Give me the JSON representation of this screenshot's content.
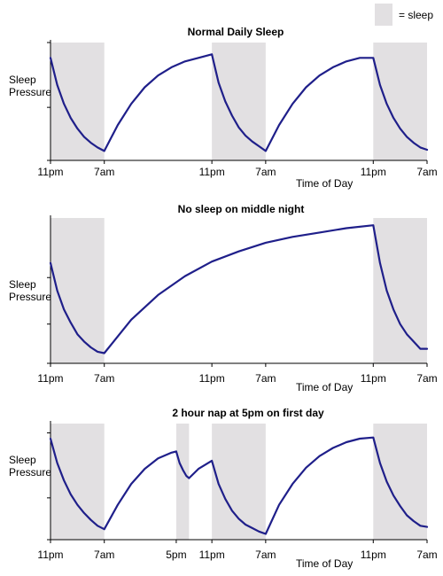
{
  "legend": {
    "label": "= sleep",
    "swatch_color": "#e2e0e2",
    "placement": "top-right"
  },
  "colors": {
    "sleep_shade": "#e2e0e2",
    "curve": "#1f1f8a",
    "axis": "#000000"
  },
  "chart_data": [
    {
      "type": "line",
      "title": "Normal Daily Sleep",
      "ylabel": "Sleep\nPressure",
      "xlabel": "Time of Day",
      "xlim": [
        0,
        56
      ],
      "ylim": [
        0,
        1
      ],
      "x_ticks": [
        {
          "x": 0,
          "label": "11pm"
        },
        {
          "x": 8,
          "label": "7am"
        },
        {
          "x": 24,
          "label": "11pm"
        },
        {
          "x": 32,
          "label": "7am"
        },
        {
          "x": 48,
          "label": "11pm"
        },
        {
          "x": 56,
          "label": "7am"
        }
      ],
      "y_ticks": [
        0,
        0.45,
        1
      ],
      "sleep_periods": [
        [
          0,
          8
        ],
        [
          24,
          32
        ],
        [
          48,
          56
        ]
      ],
      "series": [
        {
          "x": [
            0,
            1,
            2,
            3,
            4,
            5,
            6,
            7,
            8,
            10,
            12,
            14,
            16,
            18,
            20,
            22,
            24,
            25,
            26,
            27,
            28,
            29,
            30,
            31,
            32,
            34,
            36,
            38,
            40,
            42,
            44,
            46,
            48,
            49,
            50,
            51,
            52,
            53,
            54,
            55,
            56
          ],
          "values": [
            0.87,
            0.64,
            0.48,
            0.36,
            0.27,
            0.2,
            0.15,
            0.11,
            0.08,
            0.3,
            0.48,
            0.62,
            0.72,
            0.79,
            0.84,
            0.87,
            0.9,
            0.66,
            0.5,
            0.38,
            0.28,
            0.21,
            0.16,
            0.12,
            0.08,
            0.3,
            0.48,
            0.62,
            0.72,
            0.79,
            0.84,
            0.87,
            0.87,
            0.64,
            0.48,
            0.36,
            0.27,
            0.2,
            0.15,
            0.11,
            0.09
          ]
        }
      ]
    },
    {
      "type": "line",
      "title": "No sleep on middle night",
      "ylabel": "Sleep\nPressure",
      "xlabel": "Time of Day",
      "xlim": [
        0,
        56
      ],
      "ylim": [
        0,
        1
      ],
      "x_ticks": [
        {
          "x": 0,
          "label": "11pm"
        },
        {
          "x": 8,
          "label": "7am"
        },
        {
          "x": 24,
          "label": "11pm"
        },
        {
          "x": 32,
          "label": "7am"
        },
        {
          "x": 48,
          "label": "11pm"
        },
        {
          "x": 56,
          "label": "7am"
        }
      ],
      "y_ticks": [
        0,
        0.27,
        0.59
      ],
      "sleep_periods": [
        [
          0,
          8
        ],
        [
          48,
          56
        ]
      ],
      "series": [
        {
          "x": [
            0,
            1,
            2,
            3,
            4,
            5,
            6,
            7,
            8,
            12,
            16,
            20,
            24,
            28,
            32,
            36,
            40,
            44,
            48,
            49,
            50,
            51,
            52,
            53,
            54,
            55,
            56
          ],
          "values": [
            0.69,
            0.5,
            0.37,
            0.28,
            0.2,
            0.15,
            0.11,
            0.08,
            0.07,
            0.3,
            0.47,
            0.6,
            0.7,
            0.77,
            0.83,
            0.87,
            0.9,
            0.93,
            0.95,
            0.69,
            0.5,
            0.37,
            0.27,
            0.2,
            0.15,
            0.1,
            0.1
          ]
        }
      ]
    },
    {
      "type": "line",
      "title": "2 hour nap at 5pm on first day",
      "ylabel": "Sleep\nPressure",
      "xlabel": "Time of Day",
      "xlim": [
        0,
        56
      ],
      "ylim": [
        0,
        1
      ],
      "x_ticks": [
        {
          "x": 0,
          "label": "11pm"
        },
        {
          "x": 8,
          "label": "7am"
        },
        {
          "x": 18.7,
          "label": "5pm"
        },
        {
          "x": 24,
          "label": "11pm"
        },
        {
          "x": 32,
          "label": "7am"
        },
        {
          "x": 48,
          "label": "11pm"
        },
        {
          "x": 56,
          "label": "7am"
        }
      ],
      "y_ticks": [
        0,
        0.36,
        0.92
      ],
      "sleep_periods": [
        [
          0,
          8
        ],
        [
          18.7,
          20.6
        ],
        [
          24,
          32
        ],
        [
          48,
          56
        ]
      ],
      "series": [
        {
          "x": [
            0,
            1,
            2,
            3,
            4,
            5,
            6,
            7,
            8,
            10,
            12,
            14,
            16,
            18,
            18.7,
            19.2,
            19.7,
            20.2,
            20.6,
            22,
            24,
            25,
            26,
            27,
            28,
            29,
            30,
            31,
            32,
            34,
            36,
            38,
            40,
            42,
            44,
            46,
            48,
            49,
            50,
            51,
            52,
            53,
            54,
            55,
            56
          ],
          "values": [
            0.87,
            0.66,
            0.51,
            0.39,
            0.3,
            0.23,
            0.17,
            0.12,
            0.09,
            0.3,
            0.48,
            0.61,
            0.7,
            0.75,
            0.76,
            0.66,
            0.6,
            0.55,
            0.53,
            0.61,
            0.68,
            0.48,
            0.35,
            0.25,
            0.18,
            0.13,
            0.1,
            0.07,
            0.05,
            0.3,
            0.48,
            0.62,
            0.72,
            0.79,
            0.84,
            0.87,
            0.88,
            0.66,
            0.5,
            0.38,
            0.29,
            0.21,
            0.16,
            0.12,
            0.11
          ]
        }
      ]
    }
  ]
}
